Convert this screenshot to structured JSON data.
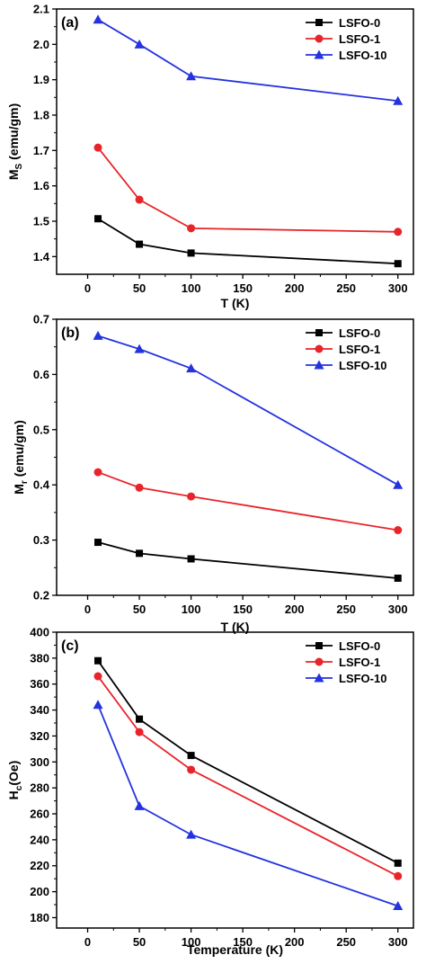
{
  "chart_data": [
    {
      "type": "line",
      "panel_label": "(a)",
      "xlabel": "T (K)",
      "ylabel_main": "M",
      "ylabel_sub": "S",
      "ylabel_rest": " (emu/gm)",
      "xlim": [
        -30,
        315
      ],
      "ylim": [
        1.35,
        2.1
      ],
      "xticks": [
        0,
        50,
        100,
        150,
        200,
        250,
        300
      ],
      "yticks": [
        1.4,
        1.5,
        1.6,
        1.7,
        1.8,
        1.9,
        2.0,
        2.1
      ],
      "ytick_decimals": 1,
      "legend_position": "top-right",
      "series": [
        {
          "name": "LSFO-0",
          "color": "#000000",
          "marker": "square",
          "x": [
            10,
            50,
            100,
            300
          ],
          "y": [
            1.507,
            1.435,
            1.41,
            1.38
          ]
        },
        {
          "name": "LSFO-1",
          "color": "#e8242a",
          "marker": "circle",
          "x": [
            10,
            50,
            100,
            300
          ],
          "y": [
            1.708,
            1.561,
            1.48,
            1.47
          ]
        },
        {
          "name": "LSFO-10",
          "color": "#2432e0",
          "marker": "triangle",
          "x": [
            10,
            50,
            100,
            300
          ],
          "y": [
            2.07,
            2.0,
            1.91,
            1.84
          ]
        }
      ]
    },
    {
      "type": "line",
      "panel_label": "(b)",
      "xlabel": "T (K)",
      "ylabel_main": "M",
      "ylabel_sub": "r",
      "ylabel_rest": " (emu/gm)",
      "xlim": [
        -30,
        315
      ],
      "ylim": [
        0.2,
        0.7
      ],
      "xticks": [
        0,
        50,
        100,
        150,
        200,
        250,
        300
      ],
      "yticks": [
        0.2,
        0.3,
        0.4,
        0.5,
        0.6,
        0.7
      ],
      "ytick_decimals": 1,
      "legend_position": "top-right",
      "series": [
        {
          "name": "LSFO-0",
          "color": "#000000",
          "marker": "square",
          "x": [
            10,
            50,
            100,
            300
          ],
          "y": [
            0.296,
            0.276,
            0.266,
            0.231
          ]
        },
        {
          "name": "LSFO-1",
          "color": "#e8242a",
          "marker": "circle",
          "x": [
            10,
            50,
            100,
            300
          ],
          "y": [
            0.423,
            0.395,
            0.379,
            0.318
          ]
        },
        {
          "name": "LSFO-10",
          "color": "#2432e0",
          "marker": "triangle",
          "x": [
            10,
            50,
            100,
            300
          ],
          "y": [
            0.67,
            0.646,
            0.611,
            0.4
          ]
        }
      ]
    },
    {
      "type": "line",
      "panel_label": "(c)",
      "xlabel": "Temperature (K)",
      "ylabel_main": "H",
      "ylabel_sub": "c",
      "ylabel_rest": "(Oe)",
      "xlim": [
        -30,
        315
      ],
      "ylim": [
        172,
        400
      ],
      "xticks": [
        0,
        50,
        100,
        150,
        200,
        250,
        300
      ],
      "yticks": [
        180,
        200,
        220,
        240,
        260,
        280,
        300,
        320,
        340,
        360,
        380,
        400
      ],
      "ytick_decimals": 0,
      "legend_position": "top-right",
      "series": [
        {
          "name": "LSFO-0",
          "color": "#000000",
          "marker": "square",
          "x": [
            10,
            50,
            100,
            300
          ],
          "y": [
            378,
            333,
            305,
            222
          ]
        },
        {
          "name": "LSFO-1",
          "color": "#e8242a",
          "marker": "circle",
          "x": [
            10,
            50,
            100,
            300
          ],
          "y": [
            366,
            323,
            294,
            212
          ]
        },
        {
          "name": "LSFO-10",
          "color": "#2432e0",
          "marker": "triangle",
          "x": [
            10,
            50,
            100,
            300
          ],
          "y": [
            344,
            266,
            244,
            189
          ]
        }
      ]
    }
  ]
}
